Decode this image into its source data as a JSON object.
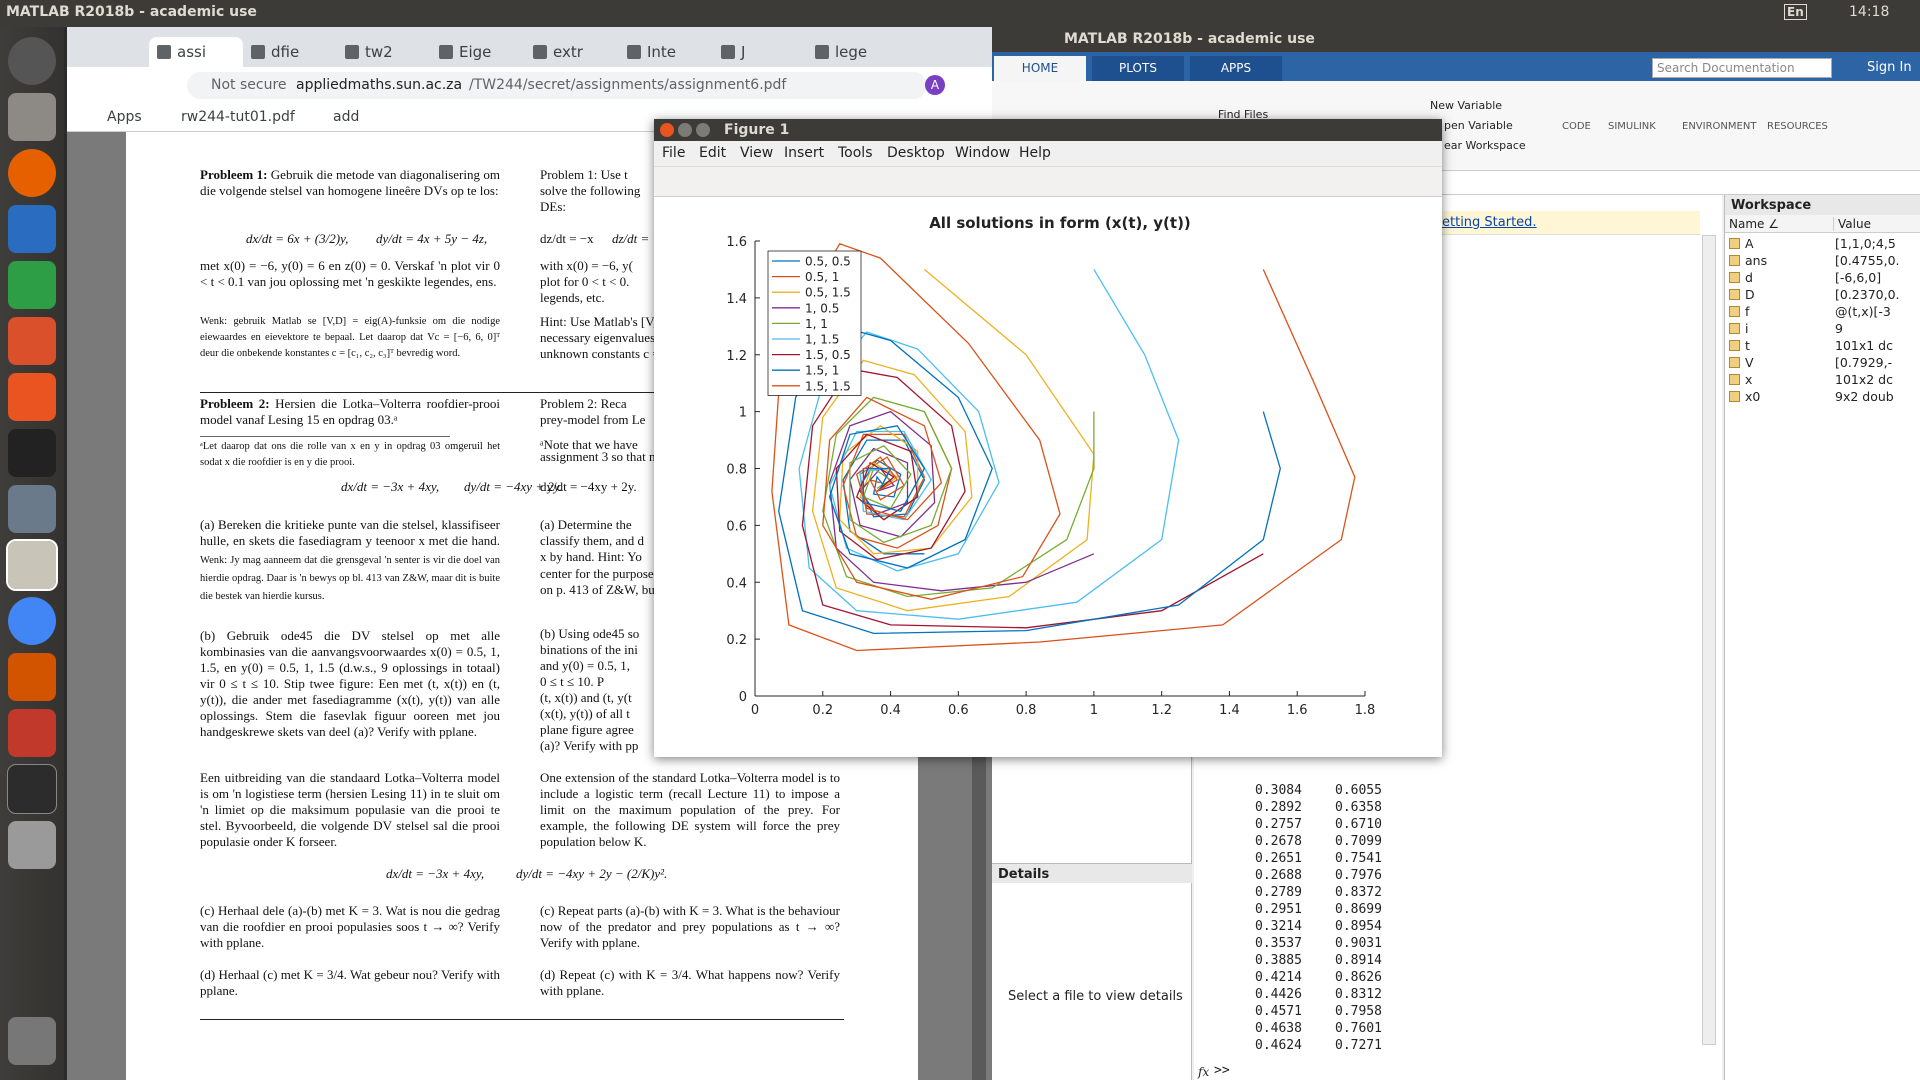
{
  "topbar": {
    "title": "MATLAB R2018b - academic use",
    "lang": "En",
    "time": "14:18"
  },
  "browser": {
    "tabs": [
      "assi",
      "dfie",
      "tw2",
      "Eige",
      "extr",
      "Inte",
      "J",
      "lege"
    ],
    "security": "Not secure",
    "url_host": "appliedmaths.sun.ac.za",
    "url_path": "/TW244/secret/assignments/assignment6.pdf",
    "avatar": "A",
    "bookmarks": [
      "Apps",
      "rw244-tut01.pdf",
      "add"
    ]
  },
  "pdf": {
    "left": {
      "p1_head": "Probleem 1:",
      "p1_text": " Gebruik die metode van diagonalisering om die volgende stelsel van homogene lineêre DVs op te los:",
      "eq1_a": "dx/dt = 6x + (3/2)y,",
      "eq1_b": "dy/dt = 4x + 5y − 4z,",
      "eq1_c": "dz/dt = −x",
      "p1_cond": "met x(0) = −6, y(0) = 6 en z(0) = 0. Verskaf 'n plot vir 0 < t < 0.1 van jou oplossing met 'n geskikte legendes, ens.",
      "p1_hint": "Wenk: gebruik Matlab se [V,D] = eig(A)-funksie om die nodige eiewaardes en eievektore te bepaal. Let daarop dat Vc = [−6, 6, 0]ᵀ deur die onbekende konstantes c = [c₁, c₂, c₃]ᵀ bevredig word.",
      "p2_head": "Probleem 2:",
      "p2_text": " Hersien die Lotka–Volterra roofdier-prooi model vanaf Lesing 15 en opdrag 03.ᵃ",
      "p2_note": "ᵃLet daarop dat ons die rolle van x en y in opdrag 03 omgeruil het sodat x die roofdier is en y die prooi.",
      "eq2_a": "dx/dt = −3x + 4xy,",
      "eq2_b": "dy/dt = −4xy + 2y.",
      "pa_text": "(a) Bereken die kritieke punte van die stelsel, klassifiseer hulle, en skets die fasediagram y teenoor x met die hand.",
      "pa_hint": " Wenk: Jy mag aanneem dat die grensgeval 'n senter is vir die doel van hierdie opdrag. Daar is 'n bewys op bl. 413 van Z&W, maar dit is buite die bestek van hierdie kursus.",
      "pb_text": "(b) Gebruik ode45 die DV stelsel op met alle kombinasies van die aanvangsvoorwaardes x(0) = 0.5, 1, 1.5, en y(0) = 0.5, 1, 1.5 (d.w.s., 9 oplossings in totaal) vir 0 ≤ t ≤ 10. Stip twee figure: Een met (t, x(t)) en (t, y(t)), die ander met fasediagramme (x(t), y(t)) van alle oplossings. Stem die fasevlak figuur ooreen met jou handgeskrewe skets van deel (a)? Verify with pplane.",
      "ext_text": "Een uitbreiding van die standaard Lotka–Volterra model is om 'n logistiese term (hersien Lesing 11) in te sluit om 'n limiet op die maksimum populasie van die prooi te stel. Byvoorbeeld, die volgende DV stelsel sal die prooi populasie onder K forseer.",
      "eq3_a": "dx/dt = −3x + 4xy,",
      "eq3_b": "dy/dt = −4xy + 2y − (2/K)y².",
      "pc_text": "(c) Herhaal dele (a)-(b) met K = 3. Wat is nou die gedrag van die roofdier en prooi populasies soos t → ∞? Verify with pplane.",
      "pd_text": "(d) Herhaal (c) met K = 3/4. Wat gebeur nou? Verify with pplane."
    },
    "right": {
      "fragments": [
        "Problem 1: Use t",
        "solve the following",
        "DEs:",
        "dz/dt = −x",
        "with x(0) = −6, y(",
        "plot for 0 < t < 0.",
        "legends, etc.",
        "Hint: Use Matlab's [V,",
        "necessary eigenvalues a",
        "unknown constants c =",
        "Problem 2: Reca",
        "prey-model from Le",
        "ᵃNote that we have",
        "assignment 3 so that n",
        "dy/dt = −4xy + 2y.",
        "(a) Determine the",
        "classify them, and d",
        "x by hand. Hint: Yo",
        "center for the purpose",
        "on p. 413 of Z&W, but",
        "(b) Using ode45 so",
        "binations of the ini",
        "and y(0) = 0.5, 1,",
        "0 ≤ t ≤ 10. P",
        "(t, x(t)) and (t, y(t",
        "(x(t), y(t)) of all t",
        "plane figure agree",
        "(a)? Verify with pp"
      ],
      "ext_text": "One extension of the standard Lotka–Volterra model is to include a logistic term (recall Lecture 11) to impose a limit on the maximum population of the prey. For example, the following DE system will force the prey population below K.",
      "pc_text": "(c) Repeat parts (a)-(b) with K = 3. What is the behaviour now of the predator and prey populations as t → ∞? Verify with pplane.",
      "pd_text": "(d) Repeat (c) with K = 3/4. What happens now? Verify with pplane."
    }
  },
  "matlab": {
    "title": "MATLAB R2018b - academic use",
    "tabs": [
      "HOME",
      "PLOTS",
      "APPS"
    ],
    "search": "Search Documentation",
    "sign_in": "Sign In",
    "find_files": "Find Files",
    "new_variable": "New Variable",
    "open_variable": "pen Variable",
    "clear_workspace": "ear Workspace",
    "sections": [
      "CODE",
      "SIMULINK",
      "ENVIRONMENT",
      "RESOURCES"
    ],
    "details": "Details",
    "details_hint": "Select a file to view details",
    "getting_started": "etting Started.",
    "output": [
      [
        "0.3084",
        "0.6055"
      ],
      [
        "0.2892",
        "0.6358"
      ],
      [
        "0.2757",
        "0.6710"
      ],
      [
        "0.2678",
        "0.7099"
      ],
      [
        "0.2651",
        "0.7541"
      ],
      [
        "0.2688",
        "0.7976"
      ],
      [
        "0.2789",
        "0.8372"
      ],
      [
        "0.2951",
        "0.8699"
      ],
      [
        "0.3214",
        "0.8954"
      ],
      [
        "0.3537",
        "0.9031"
      ],
      [
        "0.3885",
        "0.8914"
      ],
      [
        "0.4214",
        "0.8626"
      ],
      [
        "0.4426",
        "0.8312"
      ],
      [
        "0.4571",
        "0.7958"
      ],
      [
        "0.4638",
        "0.7601"
      ],
      [
        "0.4624",
        "0.7271"
      ]
    ],
    "fx": "fx",
    "prompt": ">>",
    "workspace": {
      "title": "Workspace",
      "col_name": "Name ∠",
      "col_value": "Value",
      "rows": [
        [
          "A",
          "[1,1,0;4,5"
        ],
        [
          "ans",
          "[0.4755,0."
        ],
        [
          "d",
          "[-6,6,0]"
        ],
        [
          "D",
          "[0.2370,0."
        ],
        [
          "f",
          "@(t,x)[-3"
        ],
        [
          "i",
          "9"
        ],
        [
          "t",
          "101x1 dc"
        ],
        [
          "V",
          "[0.7929,-"
        ],
        [
          "x",
          "101x2 dc"
        ],
        [
          "x0",
          "9x2 doub"
        ]
      ]
    }
  },
  "figure": {
    "title": "Figure 1",
    "menu": [
      "File",
      "Edit",
      "View",
      "Insert",
      "Tools",
      "Desktop",
      "Window",
      "Help"
    ],
    "chart_data": {
      "type": "line",
      "title": "All solutions in form (x(t), y(t))",
      "xlim": [
        0,
        1.8
      ],
      "ylim": [
        0,
        1.6
      ],
      "xticks": [
        0,
        0.2,
        0.4,
        0.6,
        0.8,
        1,
        1.2,
        1.4,
        1.6,
        1.8
      ],
      "yticks": [
        0,
        0.2,
        0.4,
        0.6,
        0.8,
        1,
        1.2,
        1.4,
        1.6
      ],
      "legend": "upper left",
      "series": [
        {
          "name": "0.5, 0.5",
          "color": "#0072bd",
          "x": [
            0.5,
            0.38,
            0.28,
            0.26,
            0.33,
            0.44,
            0.5,
            0.45,
            0.35,
            0.31,
            0.36,
            0.43,
            0.41,
            0.35,
            0.36,
            0.38
          ],
          "values": [
            0.5,
            0.5,
            0.58,
            0.76,
            0.9,
            0.9,
            0.76,
            0.64,
            0.63,
            0.74,
            0.83,
            0.78,
            0.7,
            0.71,
            0.77,
            0.74
          ]
        },
        {
          "name": "0.5, 1",
          "color": "#d95319",
          "x": [
            0.5,
            0.58,
            0.54,
            0.42,
            0.3,
            0.26,
            0.32,
            0.44,
            0.5,
            0.44,
            0.33,
            0.31,
            0.39,
            0.44,
            0.37,
            0.34,
            0.37
          ],
          "values": [
            1,
            0.8,
            0.6,
            0.52,
            0.56,
            0.74,
            0.92,
            0.92,
            0.77,
            0.63,
            0.64,
            0.78,
            0.84,
            0.74,
            0.69,
            0.76,
            0.75
          ]
        },
        {
          "name": "0.5, 1.5",
          "color": "#edb120",
          "x": [
            0.5,
            0.8,
            1.0,
            0.98,
            0.75,
            0.45,
            0.24,
            0.17,
            0.2,
            0.32,
            0.47,
            0.62,
            0.64,
            0.52,
            0.35,
            0.25,
            0.26,
            0.37,
            0.48,
            0.48,
            0.38,
            0.31,
            0.35,
            0.42,
            0.36
          ],
          "values": [
            1.5,
            1.2,
            0.85,
            0.55,
            0.35,
            0.3,
            0.38,
            0.65,
            0.98,
            1.18,
            1.13,
            0.93,
            0.7,
            0.52,
            0.5,
            0.62,
            0.85,
            0.95,
            0.86,
            0.7,
            0.62,
            0.7,
            0.82,
            0.77,
            0.72
          ]
        },
        {
          "name": "1, 0.5",
          "color": "#7e2f8e",
          "x": [
            1,
            0.8,
            0.55,
            0.35,
            0.24,
            0.22,
            0.28,
            0.4,
            0.52,
            0.53,
            0.43,
            0.31,
            0.28,
            0.35,
            0.45,
            0.45,
            0.36,
            0.31,
            0.37,
            0.41,
            0.36
          ],
          "values": [
            0.5,
            0.4,
            0.37,
            0.4,
            0.52,
            0.75,
            0.95,
            1.0,
            0.88,
            0.68,
            0.56,
            0.6,
            0.76,
            0.87,
            0.82,
            0.68,
            0.64,
            0.72,
            0.8,
            0.74,
            0.72
          ]
        },
        {
          "name": "1, 1",
          "color": "#77ac30",
          "x": [
            1,
            1.0,
            0.92,
            0.7,
            0.45,
            0.27,
            0.2,
            0.24,
            0.35,
            0.5,
            0.58,
            0.52,
            0.38,
            0.28,
            0.28,
            0.38,
            0.46,
            0.4,
            0.32,
            0.35,
            0.4,
            0.36
          ],
          "values": [
            1,
            0.8,
            0.55,
            0.38,
            0.35,
            0.42,
            0.65,
            0.92,
            1.05,
            1.0,
            0.8,
            0.6,
            0.54,
            0.62,
            0.82,
            0.88,
            0.78,
            0.66,
            0.7,
            0.8,
            0.76,
            0.73
          ]
        },
        {
          "name": "1, 1.5",
          "color": "#4dbeee",
          "x": [
            1,
            1.15,
            1.25,
            1.2,
            0.95,
            0.6,
            0.3,
            0.16,
            0.13,
            0.2,
            0.33,
            0.48,
            0.66,
            0.72,
            0.6,
            0.42,
            0.27,
            0.22,
            0.3,
            0.44,
            0.52,
            0.44,
            0.32,
            0.31,
            0.4,
            0.37
          ],
          "values": [
            1.5,
            1.2,
            0.9,
            0.55,
            0.33,
            0.27,
            0.3,
            0.45,
            0.8,
            1.1,
            1.28,
            1.22,
            1.0,
            0.75,
            0.5,
            0.44,
            0.52,
            0.74,
            0.93,
            0.93,
            0.76,
            0.62,
            0.65,
            0.79,
            0.8,
            0.73
          ]
        },
        {
          "name": "1.5, 0.5",
          "color": "#a2142f",
          "x": [
            1.5,
            1.2,
            0.8,
            0.4,
            0.2,
            0.14,
            0.17,
            0.28,
            0.42,
            0.58,
            0.62,
            0.52,
            0.36,
            0.25,
            0.24,
            0.33,
            0.46,
            0.48,
            0.38,
            0.3,
            0.34,
            0.41,
            0.36
          ],
          "values": [
            0.5,
            0.3,
            0.24,
            0.25,
            0.32,
            0.6,
            0.95,
            1.15,
            1.12,
            0.95,
            0.72,
            0.52,
            0.48,
            0.58,
            0.8,
            0.92,
            0.86,
            0.7,
            0.62,
            0.7,
            0.82,
            0.77,
            0.72
          ]
        },
        {
          "name": "1.5, 1",
          "color": "#0072bd",
          "x": [
            1.5,
            1.55,
            1.5,
            1.25,
            0.8,
            0.35,
            0.14,
            0.07,
            0.12,
            0.25,
            0.4,
            0.6,
            0.7,
            0.62,
            0.45,
            0.28,
            0.22,
            0.28,
            0.42,
            0.5,
            0.43,
            0.32,
            0.32,
            0.4,
            0.37
          ],
          "values": [
            1,
            0.8,
            0.55,
            0.32,
            0.23,
            0.22,
            0.3,
            0.65,
            1.05,
            1.3,
            1.25,
            1.05,
            0.8,
            0.55,
            0.45,
            0.5,
            0.7,
            0.92,
            0.95,
            0.8,
            0.65,
            0.68,
            0.8,
            0.8,
            0.73
          ]
        },
        {
          "name": "1.5, 1.5",
          "color": "#d95319",
          "x": [
            1.5,
            1.65,
            1.77,
            1.73,
            1.38,
            0.84,
            0.3,
            0.1,
            0.05,
            0.08,
            0.25,
            0.37,
            0.63,
            0.84,
            0.9,
            0.79,
            0.52,
            0.3,
            0.2,
            0.22,
            0.33,
            0.5,
            0.55,
            0.45,
            0.33,
            0.3,
            0.37,
            0.42,
            0.36
          ],
          "values": [
            1.5,
            1.1,
            0.77,
            0.55,
            0.25,
            0.19,
            0.16,
            0.25,
            0.72,
            1.24,
            1.59,
            1.54,
            1.24,
            0.9,
            0.64,
            0.42,
            0.34,
            0.4,
            0.6,
            0.9,
            1.05,
            0.95,
            0.75,
            0.62,
            0.66,
            0.78,
            0.84,
            0.76,
            0.72
          ]
        }
      ]
    }
  }
}
